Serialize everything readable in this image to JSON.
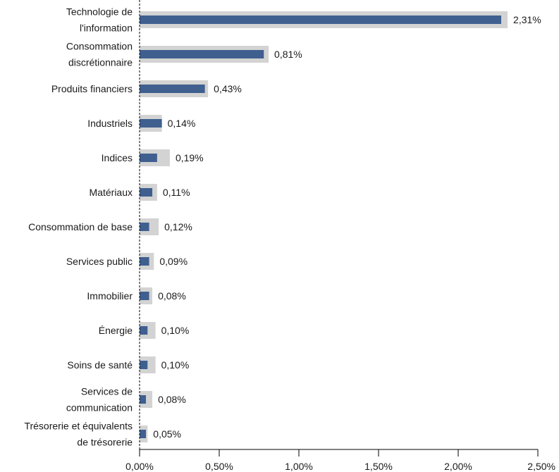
{
  "chart_data": {
    "type": "bar",
    "orientation": "horizontal",
    "categories": [
      [
        "Technologie de",
        "l'information"
      ],
      [
        "Consommation",
        "discrétionnaire"
      ],
      [
        "Produits financiers"
      ],
      [
        "Industriels"
      ],
      [
        "Indices"
      ],
      [
        "Matériaux"
      ],
      [
        "Consommation de base"
      ],
      [
        "Services public"
      ],
      [
        "Immobilier"
      ],
      [
        "Énergie"
      ],
      [
        "Soins de santé"
      ],
      [
        "Services de",
        "communication"
      ],
      [
        "Trésorerie et équivalents",
        "de trésorerie"
      ]
    ],
    "series": [
      {
        "values": [
          2.31,
          0.81,
          0.43,
          0.14,
          0.19,
          0.11,
          0.12,
          0.09,
          0.08,
          0.1,
          0.1,
          0.08,
          0.05
        ],
        "color": "#d3d3d3"
      },
      {
        "values": [
          2.27,
          0.78,
          0.41,
          0.14,
          0.11,
          0.08,
          0.06,
          0.06,
          0.06,
          0.05,
          0.05,
          0.04,
          0.04
        ],
        "color": "#3f5f8f"
      }
    ],
    "value_labels": [
      "2,31%",
      "0,81%",
      "0,43%",
      "0,14%",
      "0,19%",
      "0,11%",
      "0,12%",
      "0,09%",
      "0,08%",
      "0,10%",
      "0,10%",
      "0,08%",
      "0,05%"
    ],
    "xlim": [
      0,
      2.5
    ],
    "x_ticks": [
      0,
      0.5,
      1.0,
      1.5,
      2.0,
      2.5
    ],
    "x_tick_labels": [
      "0,00%",
      "0,50%",
      "1,00%",
      "1,50%",
      "2,00%",
      "2,50%"
    ],
    "grid": false,
    "legend": "none"
  }
}
